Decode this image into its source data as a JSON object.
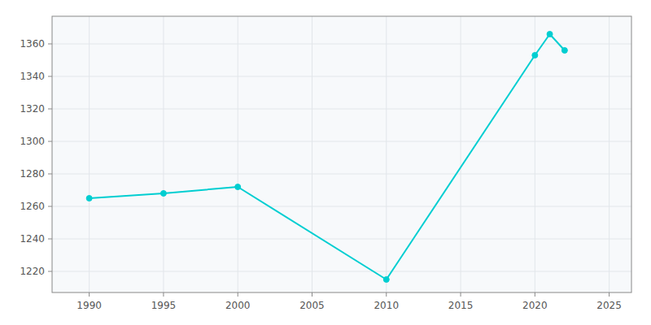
{
  "chart_data": {
    "type": "line",
    "x": [
      1990,
      1995,
      2000,
      2010,
      2020,
      2021,
      2022
    ],
    "values": [
      1265,
      1268,
      1272,
      1215,
      1353,
      1366,
      1356
    ],
    "color": "#00CED1",
    "marker": "circle",
    "xlim": [
      1987.5,
      2026.5
    ],
    "ylim": [
      1207,
      1377
    ],
    "xticks": [
      1990,
      1995,
      2000,
      2005,
      2010,
      2015,
      2020,
      2025
    ],
    "yticks": [
      1220,
      1240,
      1260,
      1280,
      1300,
      1320,
      1340,
      1360
    ],
    "grid": true
  }
}
